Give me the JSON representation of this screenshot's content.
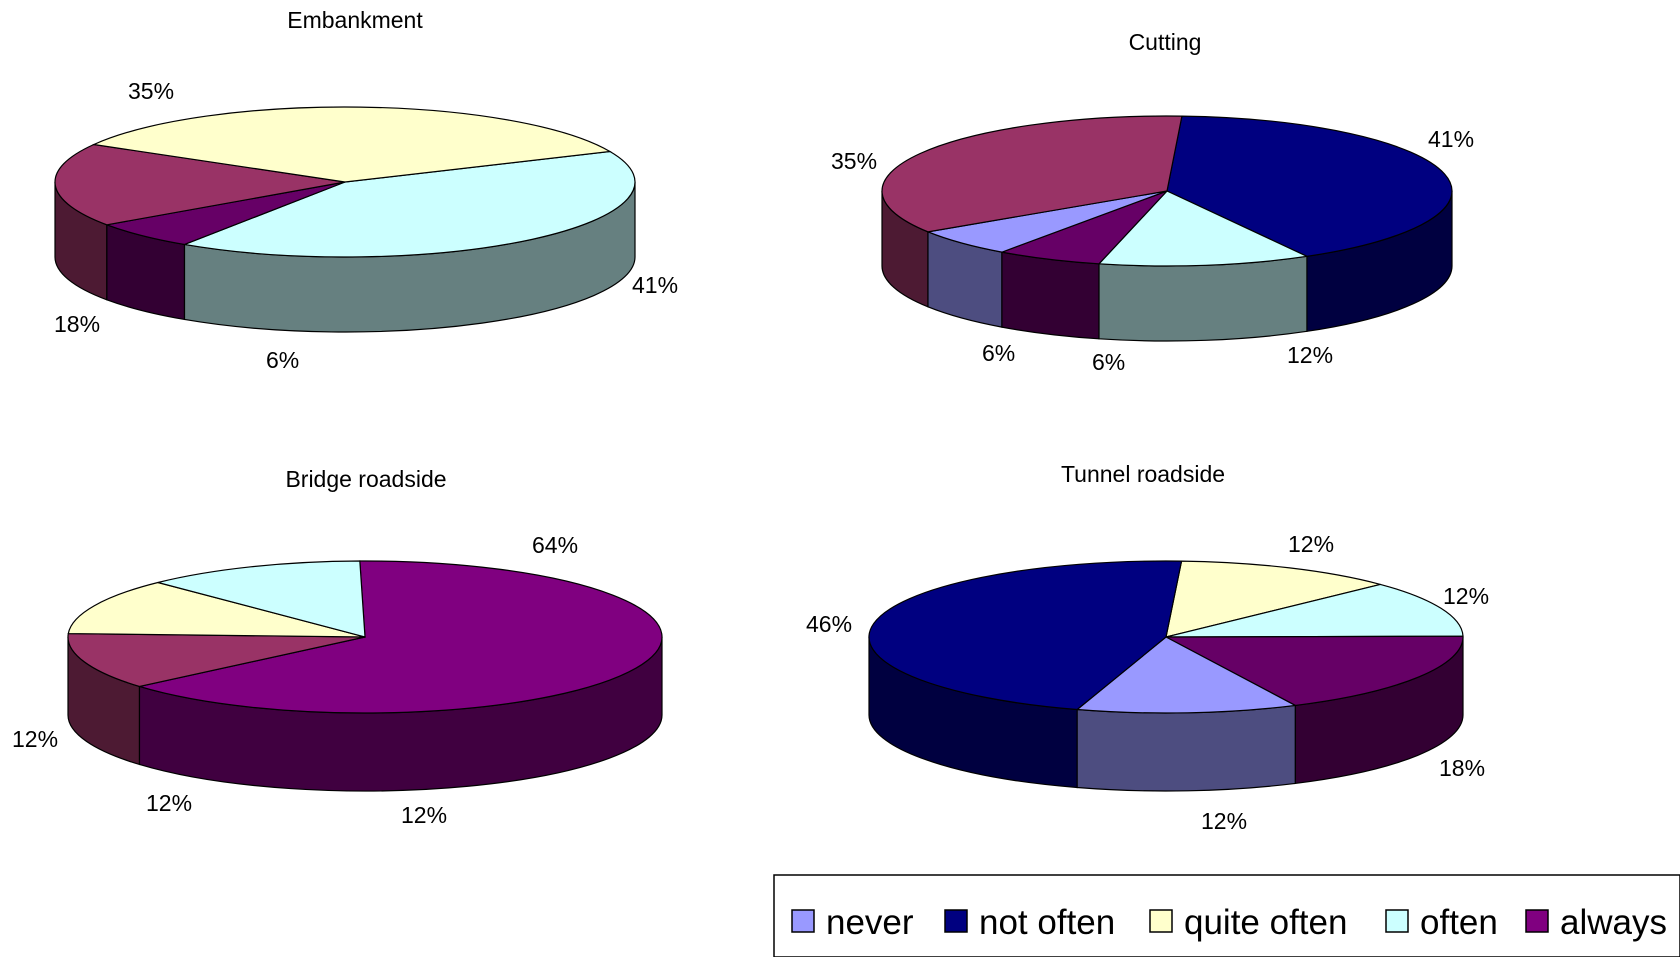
{
  "legend": {
    "items": [
      {
        "label": "never",
        "color": "#9999ff"
      },
      {
        "label": "not often",
        "color": "#000080"
      },
      {
        "label": "quite often",
        "color": "#ffffcc"
      },
      {
        "label": "often",
        "color": "#ccffff"
      },
      {
        "label": "always",
        "color": "#800080"
      }
    ]
  },
  "chart_data": [
    {
      "type": "pie",
      "style": "3d",
      "title": "Embankment",
      "slices": [
        {
          "category": "often",
          "value": 41,
          "label": "41%",
          "color": "#ccffff"
        },
        {
          "category": "always",
          "value": 6,
          "label": "6%",
          "color": "#660066"
        },
        {
          "category": "maroon",
          "value": 18,
          "label": "18%",
          "color": "#993366"
        },
        {
          "category": "quite often",
          "value": 35,
          "label": "35%",
          "color": "#ffffcc"
        }
      ]
    },
    {
      "type": "pie",
      "style": "3d",
      "title": "Cutting",
      "slices": [
        {
          "category": "not often",
          "value": 41,
          "label": "41%",
          "color": "#000080"
        },
        {
          "category": "often",
          "value": 12,
          "label": "12%",
          "color": "#ccffff"
        },
        {
          "category": "always",
          "value": 6,
          "label": "6%",
          "color": "#660066"
        },
        {
          "category": "never",
          "value": 6,
          "label": "6%",
          "color": "#9999ff"
        },
        {
          "category": "maroon",
          "value": 35,
          "label": "35%",
          "color": "#993366"
        }
      ]
    },
    {
      "type": "pie",
      "style": "3d",
      "title": "Bridge  roadside",
      "slices": [
        {
          "category": "always",
          "value": 64,
          "label": "64%",
          "color": "#800080"
        },
        {
          "category": "maroon",
          "value": 12,
          "label": "12%",
          "color": "#993366"
        },
        {
          "category": "quite often",
          "value": 12,
          "label": "12%",
          "color": "#ffffcc"
        },
        {
          "category": "often",
          "value": 12,
          "label": "12%",
          "color": "#ccffff"
        }
      ]
    },
    {
      "type": "pie",
      "style": "3d",
      "title": "Tunnel roadside",
      "slices": [
        {
          "category": "quite often",
          "value": 12,
          "label": "12%",
          "color": "#ffffcc"
        },
        {
          "category": "often",
          "value": 12,
          "label": "12%",
          "color": "#ccffff"
        },
        {
          "category": "always",
          "value": 18,
          "label": "18%",
          "color": "#660066"
        },
        {
          "category": "never",
          "value": 12,
          "label": "12%",
          "color": "#9999ff"
        },
        {
          "category": "not often",
          "value": 46,
          "label": "46%",
          "color": "#000080"
        }
      ]
    }
  ]
}
